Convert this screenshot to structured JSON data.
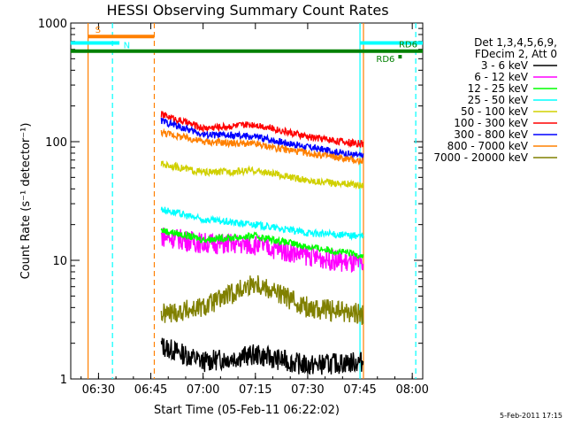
{
  "chart_data": {
    "type": "line",
    "title": "HESSI Observing Summary Count Rates",
    "xlabel": "Start Time (05-Feb-11 06:22:02)",
    "ylabel": "Count Rate (s⁻¹ detector⁻¹)",
    "xlim": [
      "06:22:02",
      "08:03:00"
    ],
    "ylim": [
      1,
      1000
    ],
    "yscale": "log",
    "x_ticks": [
      "06:30",
      "06:45",
      "07:00",
      "07:15",
      "07:30",
      "07:45",
      "08:00"
    ],
    "y_ticks": [
      "1",
      "10",
      "100",
      "1000"
    ],
    "date_stamp": "5-Feb-2011 17:15",
    "legend_header": [
      "Det 1,3,4,5,6,9,",
      "FDecim 2, Att 0"
    ],
    "series": [
      {
        "name": "3 - 6 keV",
        "color": "#000000",
        "x": [
          "06:48",
          "07:00",
          "07:15",
          "07:30",
          "07:46"
        ],
        "values": [
          1.9,
          1.4,
          1.6,
          1.3,
          1.4
        ]
      },
      {
        "name": "6 - 12 keV",
        "color": "#ff00ff",
        "x": [
          "06:48",
          "07:00",
          "07:15",
          "07:30",
          "07:46"
        ],
        "values": [
          16,
          14,
          13.5,
          11,
          9
        ]
      },
      {
        "name": "12 - 25 keV",
        "color": "#00ff00",
        "x": [
          "06:48",
          "07:00",
          "07:15",
          "07:30",
          "07:46"
        ],
        "values": [
          18,
          15,
          16,
          13,
          11
        ]
      },
      {
        "name": "25 - 50 keV",
        "color": "#00ffff",
        "x": [
          "06:48",
          "07:00",
          "07:15",
          "07:30",
          "07:46"
        ],
        "values": [
          27,
          22,
          20,
          17,
          16
        ]
      },
      {
        "name": "50 - 100 keV",
        "color": "#d0d000",
        "x": [
          "06:48",
          "07:00",
          "07:15",
          "07:30",
          "07:46"
        ],
        "values": [
          65,
          55,
          57,
          47,
          43
        ]
      },
      {
        "name": "100 - 300 keV",
        "color": "#ff0000",
        "x": [
          "06:48",
          "07:00",
          "07:15",
          "07:30",
          "07:46"
        ],
        "values": [
          170,
          130,
          140,
          110,
          95
        ]
      },
      {
        "name": "300 - 800 keV",
        "color": "#0000ff",
        "x": [
          "06:48",
          "07:00",
          "07:15",
          "07:30",
          "07:46"
        ],
        "values": [
          150,
          115,
          110,
          90,
          75
        ]
      },
      {
        "name": "800 - 7000 keV",
        "color": "#ff8000",
        "x": [
          "06:48",
          "07:00",
          "07:15",
          "07:30",
          "07:46"
        ],
        "values": [
          120,
          100,
          95,
          80,
          68
        ]
      },
      {
        "name": "7000 - 20000 keV",
        "color": "#808000",
        "x": [
          "06:48",
          "07:00",
          "07:15",
          "07:30",
          "07:46"
        ],
        "values": [
          3.5,
          4,
          6.5,
          4,
          3.5
        ]
      }
    ],
    "flags": [
      {
        "label": "S",
        "color": "#ff8000",
        "x": [
          "06:27",
          "06:46"
        ],
        "y": 770
      },
      {
        "label": "N",
        "color": "#00ffff",
        "x": [
          "06:22",
          "06:36"
        ],
        "y": 680
      },
      {
        "label": "RD6",
        "color": "#008000",
        "x": [
          "06:22",
          "08:03"
        ],
        "y": 580
      },
      {
        "label": "RD6",
        "color": "#008000",
        "x": [
          "07:56",
          "07:57"
        ],
        "y": 520
      },
      {
        "label": "RD6",
        "color": "#00ffff",
        "x": [
          "07:45",
          "08:03"
        ],
        "y": 680
      }
    ],
    "vlines": [
      {
        "x": "06:27",
        "color": "#ff8000",
        "style": "solid"
      },
      {
        "x": "06:34",
        "color": "#00ffff",
        "style": "dashed"
      },
      {
        "x": "06:46",
        "color": "#ff8000",
        "style": "dashed"
      },
      {
        "x": "07:45",
        "color": "#00ffff",
        "style": "solid"
      },
      {
        "x": "07:46",
        "color": "#ff8000",
        "style": "solid"
      },
      {
        "x": "08:01",
        "color": "#00ffff",
        "style": "dashed"
      }
    ]
  }
}
